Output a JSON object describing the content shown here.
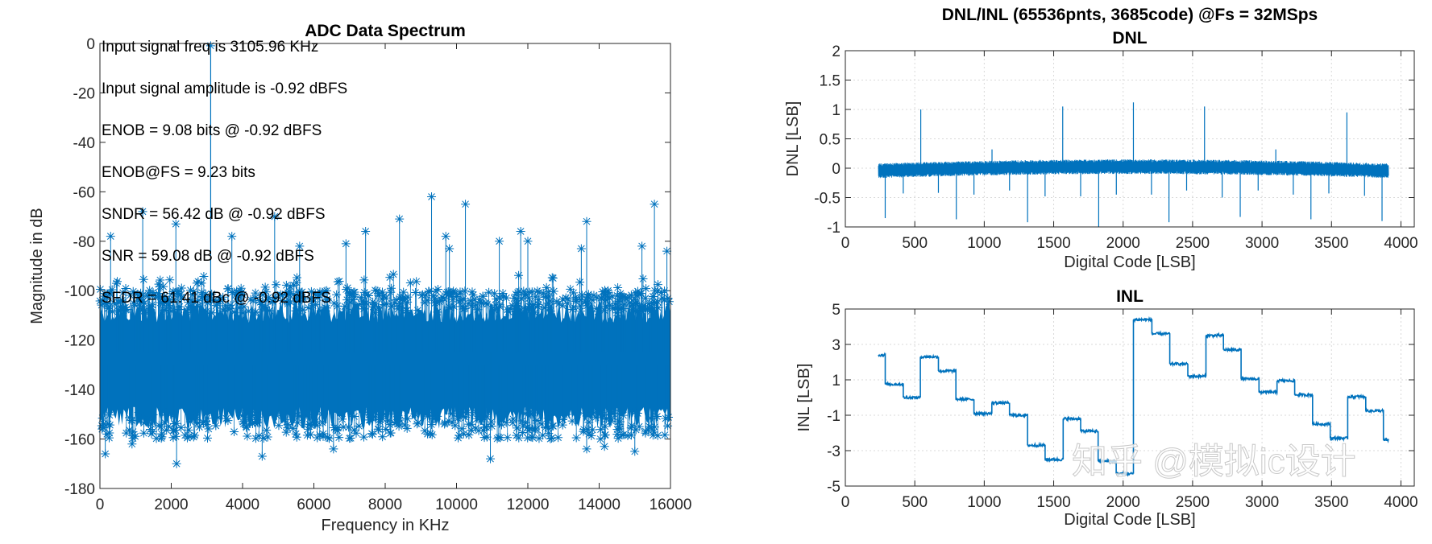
{
  "colors": {
    "series": "#0072BD",
    "axis": "#262626",
    "grid": "#d9d9d9"
  },
  "watermark": "知乎 @模拟ic设计",
  "chart_data": [
    {
      "type": "line",
      "subtype": "stem",
      "title": "ADC Data Spectrum",
      "xlabel": "Frequency in KHz",
      "ylabel": "Magnitude in dB",
      "xlim": [
        0,
        16000
      ],
      "ylim": [
        -180,
        0
      ],
      "xticks": [
        "0",
        "2000",
        "4000",
        "6000",
        "8000",
        "10000",
        "12000",
        "14000",
        "16000"
      ],
      "yticks": [
        "0",
        "-20",
        "-40",
        "-60",
        "-80",
        "-100",
        "-120",
        "-140",
        "-160",
        "-180"
      ],
      "grid": false,
      "annotations": [
        "Input signal freq is 3105.96 KHz",
        "Input signal amplitude is -0.92 dBFS",
        "ENOB = 9.08 bits @ -0.92 dBFS",
        "ENOB@FS = 9.23 bits",
        "SNDR = 56.42 dB @ -0.92 dBFS",
        "SNR = 59.08 dB @ -0.92 dBFS",
        "SFDR = 61.41 dBc @ -0.92 dBFS"
      ],
      "signal": {
        "x": 3105.96,
        "y": -0.92
      },
      "spurs": [
        {
          "x": 9300,
          "y": -62
        },
        {
          "x": 10250,
          "y": -65
        },
        {
          "x": 15550,
          "y": -65
        },
        {
          "x": 1200,
          "y": -68
        },
        {
          "x": 8400,
          "y": -71
        },
        {
          "x": 13650,
          "y": -72
        },
        {
          "x": 2130,
          "y": -73
        },
        {
          "x": 7450,
          "y": -76
        },
        {
          "x": 11800,
          "y": -76
        },
        {
          "x": 300,
          "y": -78
        },
        {
          "x": 3700,
          "y": -78
        },
        {
          "x": 9700,
          "y": -78
        },
        {
          "x": 11200,
          "y": -80
        },
        {
          "x": 12000,
          "y": -80
        },
        {
          "x": 6900,
          "y": -81
        },
        {
          "x": 15200,
          "y": -82
        },
        {
          "x": 13500,
          "y": -83
        },
        {
          "x": 9800,
          "y": -83
        },
        {
          "x": 15900,
          "y": -84
        },
        {
          "x": 5600,
          "y": -82
        },
        {
          "x": 4900,
          "y": -70
        }
      ],
      "low_outliers": [
        {
          "x": 2150,
          "y": -170
        },
        {
          "x": 10950,
          "y": -168
        },
        {
          "x": 4550,
          "y": -167
        },
        {
          "x": 150,
          "y": -166
        },
        {
          "x": 15000,
          "y": -165
        },
        {
          "x": 6550,
          "y": -164
        },
        {
          "x": 14150,
          "y": -163
        },
        {
          "x": 13650,
          "y": -164
        },
        {
          "x": 900,
          "y": -162
        }
      ],
      "noise_floor_range": [
        -150,
        -105
      ]
    },
    {
      "type": "line",
      "suptitle": "DNL/INL (65536pnts, 3685code)  @Fs = 32MSps",
      "title": "DNL",
      "xlabel": "Digital Code [LSB]",
      "ylabel": "DNL [LSB]",
      "xlim": [
        0,
        4096
      ],
      "ylim": [
        -1,
        2
      ],
      "xticks": [
        "0",
        "500",
        "1000",
        "1500",
        "2000",
        "2500",
        "3000",
        "3500",
        "4000"
      ],
      "yticks": [
        "2",
        "1.5",
        "1",
        "0.5",
        "0",
        "-0.5",
        "-1"
      ],
      "grid": true,
      "code_range": [
        238,
        3910
      ],
      "spikes": [
        {
          "x": 543,
          "y": 1.0
        },
        {
          "x": 1565,
          "y": 1.05
        },
        {
          "x": 2074,
          "y": 1.12
        },
        {
          "x": 2586,
          "y": 1.05
        },
        {
          "x": 3611,
          "y": 0.95
        },
        {
          "x": 1056,
          "y": 0.32
        },
        {
          "x": 3099,
          "y": 0.32
        },
        {
          "x": 287,
          "y": -0.85
        },
        {
          "x": 417,
          "y": -0.43
        },
        {
          "x": 670,
          "y": -0.42
        },
        {
          "x": 799,
          "y": -0.87
        },
        {
          "x": 926,
          "y": -0.45
        },
        {
          "x": 1182,
          "y": -0.38
        },
        {
          "x": 1312,
          "y": -0.92
        },
        {
          "x": 1438,
          "y": -0.48
        },
        {
          "x": 1694,
          "y": -0.48
        },
        {
          "x": 1824,
          "y": -1.0
        },
        {
          "x": 1951,
          "y": -0.45
        },
        {
          "x": 2204,
          "y": -0.45
        },
        {
          "x": 2330,
          "y": -0.92
        },
        {
          "x": 2457,
          "y": -0.38
        },
        {
          "x": 2713,
          "y": -0.5
        },
        {
          "x": 2843,
          "y": -0.83
        },
        {
          "x": 2972,
          "y": -0.38
        },
        {
          "x": 3225,
          "y": -0.45
        },
        {
          "x": 3352,
          "y": -0.87
        },
        {
          "x": 3481,
          "y": -0.43
        },
        {
          "x": 3738,
          "y": -0.47
        },
        {
          "x": 3864,
          "y": -0.9
        }
      ]
    },
    {
      "type": "line",
      "title": "INL",
      "xlabel": "Digital Code [LSB]",
      "ylabel": "INL [LSB]",
      "xlim": [
        0,
        4096
      ],
      "ylim": [
        -5,
        5
      ],
      "xticks": [
        "0",
        "500",
        "1000",
        "1500",
        "2000",
        "2500",
        "3000",
        "3500",
        "4000"
      ],
      "yticks": [
        "5",
        "3",
        "1",
        "-1",
        "-3",
        "-5"
      ],
      "grid": true,
      "segment_starts": [
        238,
        287,
        417,
        540,
        670,
        796,
        926,
        1055,
        1182,
        1312,
        1438,
        1568,
        1694,
        1820,
        1950,
        2074,
        2207,
        2336,
        2466,
        2596,
        2722,
        2849,
        2978,
        3108,
        3235,
        3364,
        3491,
        3617,
        3747,
        3874,
        3910
      ],
      "segment_levels": [
        2.4,
        0.75,
        0.0,
        2.3,
        1.5,
        -0.1,
        -0.9,
        -0.3,
        -1.0,
        -2.7,
        -3.5,
        -1.2,
        -1.9,
        -3.6,
        -4.3,
        4.4,
        3.6,
        1.9,
        1.2,
        3.5,
        2.7,
        1.05,
        0.3,
        0.95,
        0.15,
        -1.5,
        -2.3,
        0.05,
        -0.75,
        -2.4
      ]
    }
  ]
}
